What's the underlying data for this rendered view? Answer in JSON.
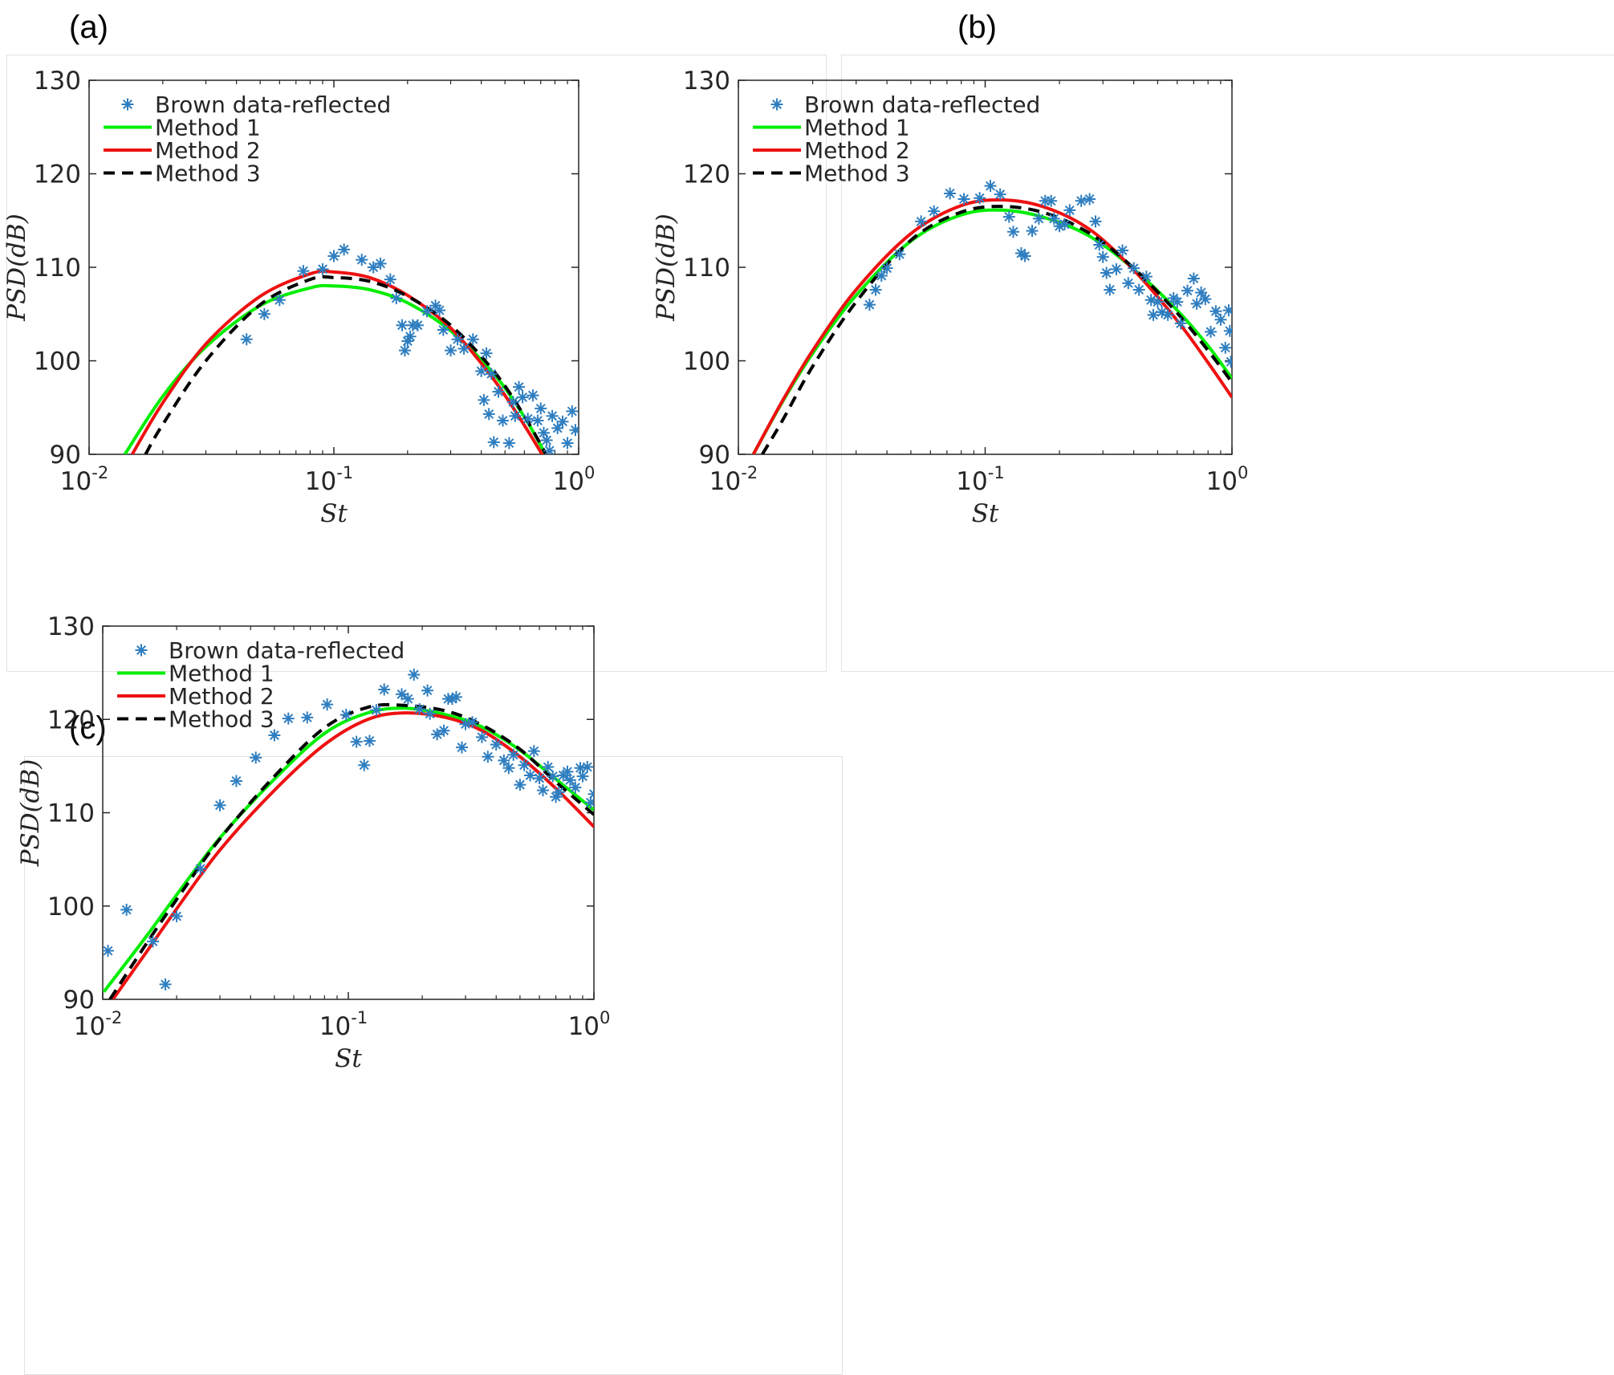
{
  "panels": [
    {
      "label": "(a)"
    },
    {
      "label": "(b)"
    },
    {
      "label": "(c)"
    }
  ],
  "colors": {
    "scatter": "#2e7ec0",
    "method1": "#00ee00",
    "method2": "#ee1111",
    "method3": "#000000"
  },
  "chart_data": [
    {
      "type": "line",
      "panel": "(a)",
      "xlabel": "St",
      "ylabel": "PSD(dB)",
      "xscale": "log",
      "xlim": [
        0.01,
        1
      ],
      "ylim": [
        90,
        130
      ],
      "xticks": [
        {
          "base": "10",
          "exp": "-2"
        },
        {
          "base": "10",
          "exp": "-1"
        },
        {
          "base": "10",
          "exp": "0"
        }
      ],
      "yticks": [
        90,
        100,
        110,
        120,
        130
      ],
      "legend": [
        "Brown data-reflected",
        "Method 1",
        "Method 2",
        "Method 3"
      ],
      "legend_position": "top-left",
      "scatter": {
        "name": "Brown data-reflected",
        "x": [
          0.044,
          0.052,
          0.06,
          0.075,
          0.09,
          0.1,
          0.11,
          0.13,
          0.145,
          0.155,
          0.17,
          0.18,
          0.19,
          0.195,
          0.2,
          0.205,
          0.21,
          0.22,
          0.24,
          0.26,
          0.27,
          0.28,
          0.3,
          0.32,
          0.34,
          0.37,
          0.4,
          0.41,
          0.42,
          0.43,
          0.44,
          0.45,
          0.47,
          0.49,
          0.52,
          0.54,
          0.55,
          0.57,
          0.59,
          0.62,
          0.65,
          0.68,
          0.7,
          0.72,
          0.74,
          0.76,
          0.78,
          0.82,
          0.86,
          0.9,
          0.94,
          0.97
        ],
        "y": [
          102.3,
          105,
          106.5,
          109.6,
          109.8,
          111.2,
          111.9,
          110.8,
          110,
          110.4,
          108.7,
          106.7,
          103.8,
          101.1,
          102.1,
          102.6,
          103.8,
          103.8,
          105.3,
          105.9,
          105.4,
          103.3,
          101.1,
          102.3,
          101.3,
          102.3,
          98.9,
          95.8,
          100.8,
          94.3,
          98.6,
          91.3,
          96.7,
          93.6,
          91.2,
          95.6,
          94.1,
          97.2,
          96.1,
          93.8,
          96.3,
          93.6,
          94.9,
          92.3,
          91.5,
          90.4,
          94.1,
          92.8,
          93.5,
          91.2,
          94.6,
          92.6
        ]
      },
      "series": [
        {
          "name": "Method 1",
          "x": [
            0.014,
            0.02,
            0.03,
            0.05,
            0.08,
            0.1,
            0.14,
            0.2,
            0.3,
            0.45,
            0.6,
            0.75
          ],
          "y": [
            90,
            96.2,
            101.5,
            105.9,
            107.8,
            108,
            107.6,
            106.2,
            103.2,
            98.6,
            94,
            89.5
          ]
        },
        {
          "name": "Method 2",
          "x": [
            0.015,
            0.02,
            0.03,
            0.05,
            0.08,
            0.1,
            0.14,
            0.2,
            0.3,
            0.45,
            0.6,
            0.72
          ],
          "y": [
            90,
            95.5,
            101.8,
            106.9,
            109.3,
            109.5,
            108.9,
            107,
            103.5,
            98,
            93.1,
            89.7
          ]
        },
        {
          "name": "Method 3",
          "x": [
            0.017,
            0.02,
            0.03,
            0.05,
            0.08,
            0.1,
            0.14,
            0.2,
            0.3,
            0.45,
            0.6,
            0.75
          ],
          "y": [
            90,
            93.2,
            100,
            106,
            108.7,
            108.9,
            108.5,
            106.9,
            103.8,
            98.9,
            94.1,
            89.6
          ]
        }
      ]
    },
    {
      "type": "line",
      "panel": "(b)",
      "xlabel": "St",
      "ylabel": "PSD(dB)",
      "xscale": "log",
      "xlim": [
        0.01,
        1
      ],
      "ylim": [
        90,
        130
      ],
      "xticks": [
        {
          "base": "10",
          "exp": "-2"
        },
        {
          "base": "10",
          "exp": "-1"
        },
        {
          "base": "10",
          "exp": "0"
        }
      ],
      "yticks": [
        90,
        100,
        110,
        120,
        130
      ],
      "legend": [
        "Brown data-reflected",
        "Method 1",
        "Method 2",
        "Method 3"
      ],
      "legend_position": "top-left",
      "scatter": {
        "name": "Brown data-reflected",
        "x": [
          0.034,
          0.036,
          0.038,
          0.04,
          0.045,
          0.055,
          0.062,
          0.072,
          0.082,
          0.095,
          0.105,
          0.115,
          0.125,
          0.13,
          0.14,
          0.145,
          0.155,
          0.165,
          0.175,
          0.185,
          0.19,
          0.2,
          0.21,
          0.22,
          0.245,
          0.265,
          0.28,
          0.29,
          0.3,
          0.31,
          0.32,
          0.34,
          0.36,
          0.38,
          0.4,
          0.42,
          0.45,
          0.47,
          0.48,
          0.5,
          0.52,
          0.55,
          0.58,
          0.6,
          0.62,
          0.66,
          0.7,
          0.72,
          0.75,
          0.78,
          0.82,
          0.86,
          0.9,
          0.94,
          0.97,
          0.98,
          0.99
        ],
        "y": [
          106,
          107.6,
          109.1,
          109.9,
          111.4,
          114.9,
          116,
          117.9,
          117.3,
          117.4,
          118.7,
          117.8,
          115.4,
          113.8,
          111.5,
          111.2,
          113.9,
          115.2,
          117.1,
          117.1,
          115.2,
          114.4,
          114.6,
          116.1,
          117.1,
          117.3,
          114.9,
          112.4,
          111.1,
          109.4,
          107.6,
          109.8,
          111.8,
          108.3,
          109.9,
          107.6,
          109,
          106.5,
          104.9,
          106.3,
          105.2,
          104.9,
          106.7,
          106.3,
          104,
          107.5,
          108.8,
          106.1,
          107.3,
          106.6,
          103.1,
          105.3,
          104.4,
          101.4,
          105.4,
          103.2,
          99.9
        ]
      },
      "series": [
        {
          "name": "Method 1",
          "x": [
            0.0115,
            0.015,
            0.02,
            0.03,
            0.05,
            0.08,
            0.12,
            0.18,
            0.27,
            0.4,
            0.6,
            0.8,
            1.0
          ],
          "y": [
            90,
            95.5,
            100.8,
            107,
            112.8,
            115.6,
            116.1,
            115.2,
            113.2,
            109.8,
            105.4,
            101.6,
            98.1
          ]
        },
        {
          "name": "Method 2",
          "x": [
            0.0115,
            0.015,
            0.02,
            0.03,
            0.05,
            0.08,
            0.12,
            0.18,
            0.27,
            0.4,
            0.6,
            0.8,
            1.0
          ],
          "y": [
            90,
            95.6,
            101.1,
            107.6,
            113.6,
            116.6,
            117.2,
            116.3,
            113.9,
            109.7,
            104.3,
            99.8,
            96.1
          ]
        },
        {
          "name": "Method 3",
          "x": [
            0.0125,
            0.015,
            0.02,
            0.03,
            0.05,
            0.08,
            0.12,
            0.18,
            0.27,
            0.4,
            0.6,
            0.8,
            1.0
          ],
          "y": [
            90,
            93.5,
            99.4,
            106.3,
            112.9,
            115.9,
            116.5,
            115.7,
            113.5,
            109.9,
            105.1,
            101.1,
            97.7
          ]
        }
      ]
    },
    {
      "type": "line",
      "panel": "(c)",
      "xlabel": "St",
      "ylabel": "PSD(dB)",
      "xscale": "log",
      "xlim": [
        0.01,
        1
      ],
      "ylim": [
        90,
        130
      ],
      "xticks": [
        {
          "base": "10",
          "exp": "-2"
        },
        {
          "base": "10",
          "exp": "-1"
        },
        {
          "base": "10",
          "exp": "0"
        }
      ],
      "yticks": [
        90,
        100,
        110,
        120,
        130
      ],
      "legend": [
        "Brown data-reflected",
        "Method 1",
        "Method 2",
        "Method 3"
      ],
      "legend_position": "top-left",
      "scatter": {
        "name": "Brown data-reflected",
        "x": [
          0.0105,
          0.0125,
          0.016,
          0.018,
          0.02,
          0.025,
          0.03,
          0.035,
          0.042,
          0.05,
          0.057,
          0.068,
          0.082,
          0.098,
          0.108,
          0.116,
          0.122,
          0.13,
          0.14,
          0.165,
          0.175,
          0.185,
          0.195,
          0.21,
          0.215,
          0.23,
          0.245,
          0.255,
          0.265,
          0.275,
          0.29,
          0.3,
          0.32,
          0.35,
          0.37,
          0.4,
          0.43,
          0.45,
          0.47,
          0.5,
          0.52,
          0.55,
          0.57,
          0.6,
          0.62,
          0.65,
          0.68,
          0.7,
          0.72,
          0.75,
          0.78,
          0.8,
          0.84,
          0.88,
          0.9,
          0.94,
          0.97,
          1.0
        ],
        "y": [
          95.2,
          99.6,
          96.2,
          91.6,
          98.9,
          104,
          110.8,
          113.4,
          115.9,
          118.3,
          120.1,
          120.2,
          121.6,
          120.5,
          117.6,
          115.1,
          117.7,
          121,
          123.2,
          122.7,
          122.2,
          124.8,
          121.1,
          123.1,
          120.6,
          118.4,
          118.8,
          122.2,
          122.2,
          122.4,
          117,
          119.5,
          119.7,
          118.1,
          116,
          117.3,
          115.6,
          114.8,
          116.2,
          113,
          115.1,
          114,
          116.6,
          113.7,
          112.4,
          114.9,
          113.9,
          111.7,
          112.2,
          114,
          114.4,
          113.5,
          112.7,
          114.8,
          113.9,
          114.9,
          111.1,
          112
        ]
      },
      "series": [
        {
          "name": "Method 1",
          "x": [
            0.0101,
            0.015,
            0.02,
            0.03,
            0.05,
            0.08,
            0.12,
            0.17,
            0.25,
            0.35,
            0.5,
            0.7,
            1.0
          ],
          "y": [
            90.8,
            96.7,
            101.2,
            107.3,
            113.6,
            118.5,
            120.7,
            121.2,
            120.5,
            119.2,
            116.7,
            113.6,
            110.3
          ]
        },
        {
          "name": "Method 2",
          "x": [
            0.011,
            0.015,
            0.02,
            0.03,
            0.05,
            0.08,
            0.12,
            0.17,
            0.25,
            0.35,
            0.5,
            0.7,
            1.0
          ],
          "y": [
            90,
            95,
            99.7,
            106,
            112.4,
            117.3,
            120,
            120.7,
            120.2,
            118.8,
            116,
            112.6,
            108.5
          ]
        },
        {
          "name": "Method 3",
          "x": [
            0.0107,
            0.015,
            0.02,
            0.03,
            0.05,
            0.08,
            0.12,
            0.17,
            0.25,
            0.35,
            0.5,
            0.7,
            1.0
          ],
          "y": [
            90,
            95.9,
            100.7,
            107.2,
            113.9,
            119.1,
            121.3,
            121.5,
            120.9,
            119.4,
            116.8,
            113.3,
            109.8
          ]
        }
      ]
    }
  ]
}
